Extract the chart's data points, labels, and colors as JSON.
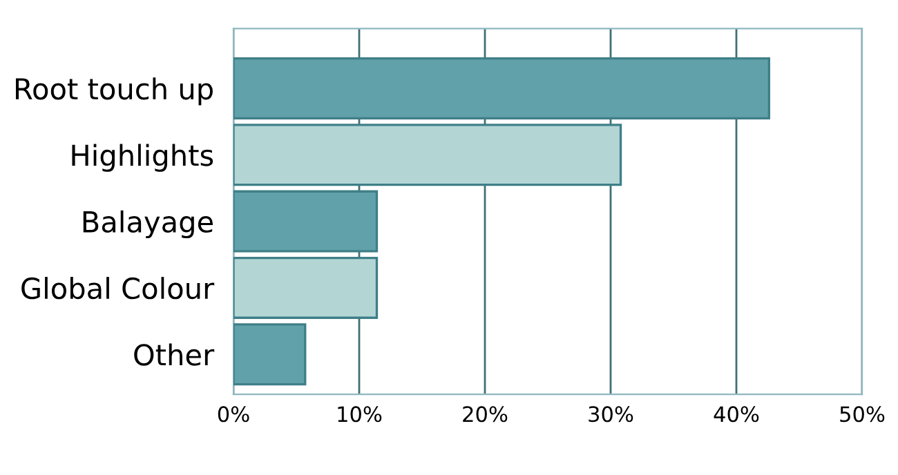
{
  "chart_data": {
    "type": "bar",
    "orientation": "horizontal",
    "categories": [
      "Root touch up",
      "Highlights",
      "Balayage",
      "Global Colour",
      "Other"
    ],
    "values": [
      42.6,
      30.8,
      11.4,
      11.4,
      5.7
    ],
    "colors": [
      "#60a1aa",
      "#b3d6d5",
      "#60a1aa",
      "#b3d6d5",
      "#60a1aa"
    ],
    "xlim": [
      0,
      50
    ],
    "xticks": [
      {
        "value": 0,
        "label": "0%"
      },
      {
        "value": 10,
        "label": "10%"
      },
      {
        "value": 20,
        "label": "20%"
      },
      {
        "value": 30,
        "label": "30%"
      },
      {
        "value": 40,
        "label": "40%"
      },
      {
        "value": 50,
        "label": "50%"
      }
    ],
    "grid": "x",
    "legend": false
  }
}
